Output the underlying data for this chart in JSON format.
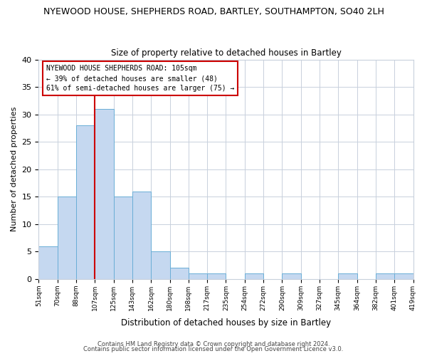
{
  "title": "NYEWOOD HOUSE, SHEPHERDS ROAD, BARTLEY, SOUTHAMPTON, SO40 2LH",
  "subtitle": "Size of property relative to detached houses in Bartley",
  "xlabel": "Distribution of detached houses by size in Bartley",
  "ylabel": "Number of detached properties",
  "bar_values": [
    6,
    15,
    28,
    31,
    15,
    16,
    5,
    2,
    1,
    1,
    0,
    1,
    0,
    1,
    0,
    0,
    1,
    0,
    1,
    1
  ],
  "bin_edges": [
    0,
    1,
    2,
    3,
    4,
    5,
    6,
    7,
    8,
    9,
    10,
    11,
    12,
    13,
    14,
    15,
    16,
    17,
    18,
    19,
    20
  ],
  "bin_labels": [
    "51sqm",
    "70sqm",
    "88sqm",
    "107sqm",
    "125sqm",
    "143sqm",
    "162sqm",
    "180sqm",
    "198sqm",
    "217sqm",
    "235sqm",
    "254sqm",
    "272sqm",
    "290sqm",
    "309sqm",
    "327sqm",
    "345sqm",
    "364sqm",
    "382sqm",
    "401sqm",
    "419sqm"
  ],
  "bar_color": "#c5d8f0",
  "bar_edge_color": "#6aaed6",
  "vline_x": 3.0,
  "vline_color": "#cc0000",
  "ylim": [
    0,
    40
  ],
  "yticks": [
    0,
    5,
    10,
    15,
    20,
    25,
    30,
    35,
    40
  ],
  "annotation_title": "NYEWOOD HOUSE SHEPHERDS ROAD: 105sqm",
  "annotation_line2": "← 39% of detached houses are smaller (48)",
  "annotation_line3": "61% of semi-detached houses are larger (75) →",
  "footer1": "Contains HM Land Registry data © Crown copyright and database right 2024.",
  "footer2": "Contains public sector information licensed under the Open Government Licence v3.0.",
  "background_color": "#ffffff",
  "grid_color": "#c8d0dc"
}
